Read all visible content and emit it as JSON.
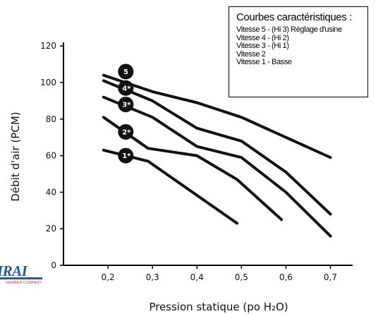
{
  "chart_data": {
    "type": "line",
    "xlabel": "Pression statique (po H₂O)",
    "ylabel": "Débit d'air (PCM)",
    "x_ticks": [
      "0,2",
      "0,3",
      "0,4",
      "0,5",
      "0,6",
      "0,7"
    ],
    "y_ticks": [
      "0",
      "20",
      "40",
      "60",
      "80",
      "100",
      "120"
    ],
    "xlim": [
      0.1,
      0.75
    ],
    "ylim": [
      0,
      122
    ],
    "grid": false,
    "legend_position": "top-right",
    "legend": {
      "title": "Courbes caractéristiques :",
      "items": [
        "Vitesse 5 - (Hi 3) Réglage d'usine",
        "Vitesse 4 - (Hi 2)",
        "Vitesse 3 - (Hi 1)",
        "Vitesse 2",
        "Vitesse 1 - Basse"
      ]
    },
    "series": [
      {
        "label": "5",
        "marker_at": [
          0.24,
          106
        ],
        "x": [
          0.19,
          0.3,
          0.4,
          0.5,
          0.6,
          0.7
        ],
        "y": [
          104,
          95,
          89,
          81,
          70,
          59
        ]
      },
      {
        "label": "4*",
        "marker_at": [
          0.24,
          97
        ],
        "x": [
          0.19,
          0.3,
          0.4,
          0.5,
          0.6,
          0.7
        ],
        "y": [
          101,
          90,
          75,
          68,
          51,
          28
        ]
      },
      {
        "label": "3*",
        "marker_at": [
          0.24,
          88
        ],
        "x": [
          0.19,
          0.3,
          0.4,
          0.5,
          0.6,
          0.7
        ],
        "y": [
          92,
          81,
          65,
          59,
          40,
          16
        ]
      },
      {
        "label": "2*",
        "marker_at": [
          0.24,
          73
        ],
        "x": [
          0.19,
          0.29,
          0.4,
          0.49,
          0.59
        ],
        "y": [
          81,
          64,
          60,
          47,
          25
        ]
      },
      {
        "label": "1*",
        "marker_at": [
          0.24,
          60
        ],
        "x": [
          0.19,
          0.29,
          0.39,
          0.49
        ],
        "y": [
          63,
          57,
          40,
          23
        ]
      }
    ]
  },
  "logo": {
    "word": "IRAI",
    "tagline": "MEMBER COMPANY"
  }
}
